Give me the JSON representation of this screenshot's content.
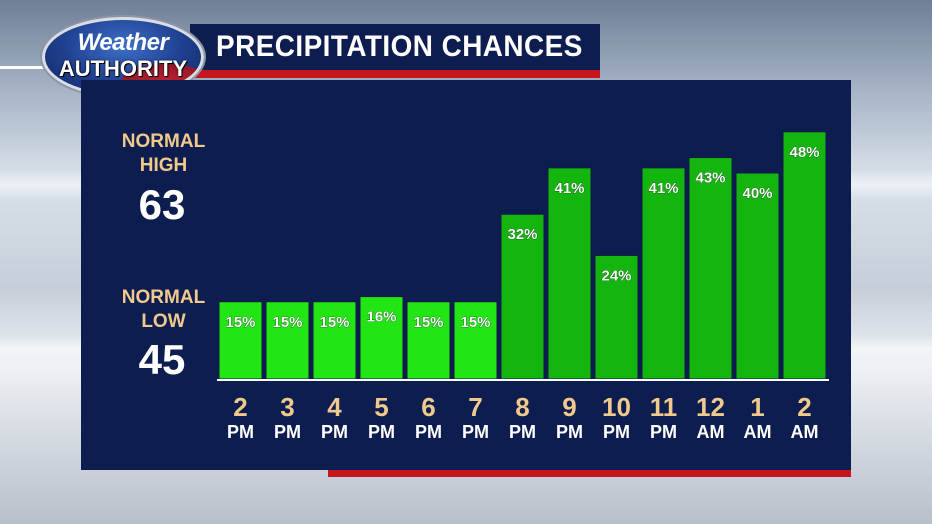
{
  "header": {
    "title": "PRECIPITATION CHANCES",
    "logo_line1": "Weather",
    "logo_line2": "AUTHORITY"
  },
  "normals": {
    "high_label_1": "NORMAL",
    "high_label_2": "HIGH",
    "high_value": "63",
    "low_label_1": "NORMAL",
    "low_label_2": "LOW",
    "low_value": "45"
  },
  "colors": {
    "panel": "#0e1d4f",
    "accent_red": "#c4161c",
    "bar_light": "#22e614",
    "bar_dark": "#15b510",
    "label_gold": "#f0c98c",
    "hour_gold": "#f0c98c"
  },
  "chart_data": {
    "type": "bar",
    "title": "PRECIPITATION CHANCES",
    "hours": [
      "2",
      "3",
      "4",
      "5",
      "6",
      "7",
      "8",
      "9",
      "10",
      "11",
      "12",
      "1",
      "2"
    ],
    "periods": [
      "PM",
      "PM",
      "PM",
      "PM",
      "PM",
      "PM",
      "PM",
      "PM",
      "PM",
      "PM",
      "AM",
      "AM",
      "AM"
    ],
    "values": [
      15,
      15,
      15,
      16,
      15,
      15,
      32,
      41,
      24,
      41,
      43,
      40,
      48
    ],
    "value_labels": [
      "15%",
      "15%",
      "15%",
      "16%",
      "15%",
      "15%",
      "32%",
      "41%",
      "24%",
      "41%",
      "43%",
      "40%",
      "48%"
    ],
    "unit": "%",
    "grid": false,
    "legend": "none"
  }
}
